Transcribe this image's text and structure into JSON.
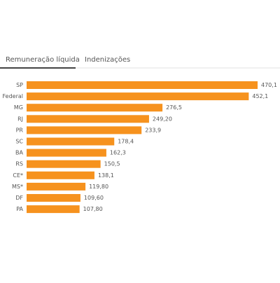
{
  "tabs": [
    "Remuneração líquida",
    "Indenizações"
  ],
  "chart_data": {
    "type": "bar",
    "orientation": "horizontal",
    "color": "#f6921e",
    "categories": [
      "SP",
      "Federal",
      "MG",
      "RJ",
      "PR",
      "SC",
      "BA",
      "RS",
      "CE*",
      "MS*",
      "DF",
      "PA"
    ],
    "values": [
      470.1,
      452.1,
      276.5,
      249.2,
      233.9,
      178.4,
      162.3,
      150.5,
      138.1,
      119.8,
      109.6,
      107.8
    ],
    "value_labels": [
      "470,1",
      "452,1",
      "276,5",
      "249,20",
      "233,9",
      "178,4",
      "162,3",
      "150,5",
      "138,1",
      "119,80",
      "109,60",
      "107,80"
    ]
  }
}
